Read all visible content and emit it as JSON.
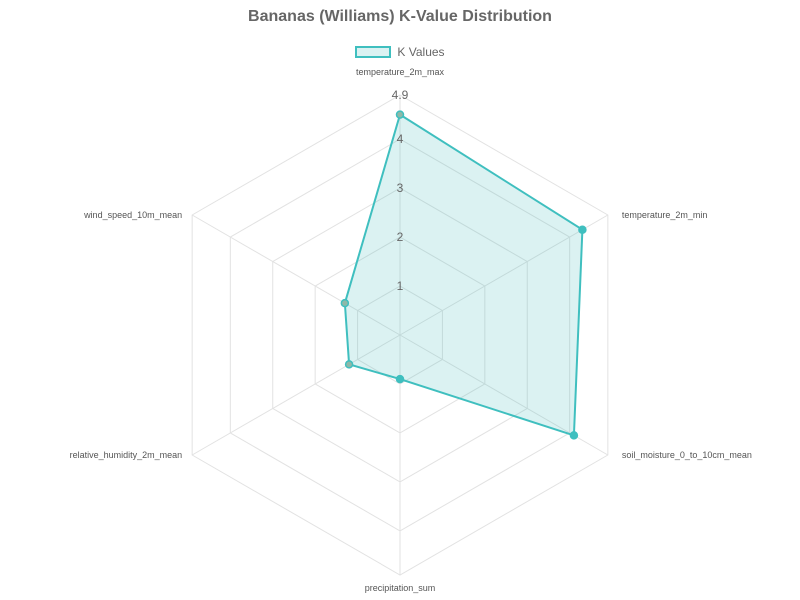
{
  "title": "Bananas (Williams) K-Value Distribution",
  "legend": {
    "label": "K Values"
  },
  "colors": {
    "line": "#3fbfbf",
    "fill": "rgba(75,192,192,0.2)",
    "grid": "#e2e2e2",
    "text": "#666666",
    "point_alt": "#8fb8a8"
  },
  "chart_data": {
    "type": "radar",
    "title": "Bananas (Williams) K-Value Distribution",
    "categories": [
      "temperature_2m_max",
      "temperature_2m_min",
      "soil_moisture_0_to_10cm_mean",
      "precipitation_sum",
      "relative_humidity_2m_mean",
      "wind_speed_10m_mean"
    ],
    "series": [
      {
        "name": "K Values",
        "values": [
          4.5,
          4.3,
          4.1,
          0.9,
          1.2,
          1.3
        ]
      }
    ],
    "rlim": [
      0,
      4.9
    ],
    "ticks": [
      1,
      2,
      3,
      4,
      4.9
    ],
    "tick_labels": [
      "1",
      "2",
      "3",
      "4",
      "4.9"
    ],
    "legend_position": "top",
    "grid": true
  }
}
